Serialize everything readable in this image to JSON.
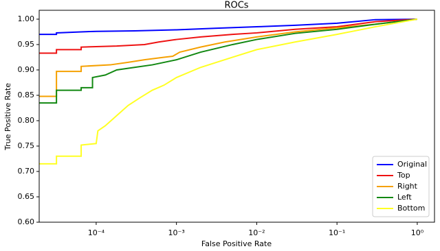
{
  "chart_data": {
    "type": "line",
    "title": "ROCs",
    "x_label": "False Positive Rate",
    "y_label": "True Positive Rate",
    "x_scale": "log",
    "xlim": [
      1.95e-05,
      1.64
    ],
    "ylim": [
      0.6,
      1.0175
    ],
    "xticks": [
      {
        "value": 0.0001,
        "label": "10⁻⁴"
      },
      {
        "value": 0.001,
        "label": "10⁻³"
      },
      {
        "value": 0.01,
        "label": "10⁻²"
      },
      {
        "value": 0.1,
        "label": "10⁻¹"
      },
      {
        "value": 1,
        "label": "10⁰"
      }
    ],
    "yticks": [
      {
        "value": 0.6,
        "label": "0.60"
      },
      {
        "value": 0.65,
        "label": "0.65"
      },
      {
        "value": 0.7,
        "label": "0.70"
      },
      {
        "value": 0.75,
        "label": "0.75"
      },
      {
        "value": 0.8,
        "label": "0.80"
      },
      {
        "value": 0.85,
        "label": "0.85"
      },
      {
        "value": 0.9,
        "label": "0.90"
      },
      {
        "value": 0.95,
        "label": "0.95"
      },
      {
        "value": 1.0,
        "label": "1.00"
      }
    ],
    "legend": "lower right",
    "series": [
      {
        "name": "Original",
        "color": "#0000ff",
        "x": [
          1.95e-05,
          3.2e-05,
          3.2e-05,
          6.5e-05,
          0.0001,
          0.0003,
          0.001,
          0.003,
          0.01,
          0.03,
          0.1,
          0.3,
          1
        ],
        "values": [
          0.97,
          0.97,
          0.973,
          0.975,
          0.976,
          0.977,
          0.979,
          0.982,
          0.985,
          0.988,
          0.992,
          0.999,
          1.0
        ]
      },
      {
        "name": "Top",
        "color": "#ee1111",
        "x": [
          1.95e-05,
          3.2e-05,
          3.2e-05,
          6.5e-05,
          6.5e-05,
          0.00018,
          0.0004,
          0.0006,
          0.001,
          0.002,
          0.005,
          0.01,
          0.03,
          0.1,
          0.3,
          1
        ],
        "values": [
          0.933,
          0.933,
          0.94,
          0.94,
          0.945,
          0.947,
          0.95,
          0.955,
          0.96,
          0.965,
          0.97,
          0.973,
          0.98,
          0.985,
          0.995,
          1.0
        ]
      },
      {
        "name": "Right",
        "color": "#f5a000",
        "x": [
          1.95e-05,
          3.2e-05,
          3.2e-05,
          6.5e-05,
          6.5e-05,
          0.00015,
          0.00025,
          0.0004,
          0.0007,
          0.0009,
          0.0011,
          0.002,
          0.004,
          0.01,
          0.03,
          0.1,
          0.3,
          1
        ],
        "values": [
          0.848,
          0.848,
          0.897,
          0.897,
          0.907,
          0.91,
          0.915,
          0.92,
          0.925,
          0.927,
          0.935,
          0.945,
          0.955,
          0.965,
          0.975,
          0.983,
          0.99,
          1.0
        ]
      },
      {
        "name": "Left",
        "color": "#118811",
        "x": [
          1.95e-05,
          3.2e-05,
          3.2e-05,
          6.5e-05,
          6.5e-05,
          9e-05,
          9e-05,
          0.00013,
          0.00018,
          0.0003,
          0.0005,
          0.001,
          0.002,
          0.005,
          0.01,
          0.03,
          0.1,
          0.3,
          1
        ],
        "values": [
          0.835,
          0.835,
          0.86,
          0.86,
          0.865,
          0.865,
          0.885,
          0.89,
          0.9,
          0.905,
          0.91,
          0.92,
          0.935,
          0.95,
          0.96,
          0.972,
          0.98,
          0.99,
          1.0
        ]
      },
      {
        "name": "Bottom",
        "color": "#ffff22",
        "x": [
          1.95e-05,
          3.2e-05,
          3.2e-05,
          6.5e-05,
          6.5e-05,
          0.0001,
          0.000105,
          0.00013,
          0.00018,
          0.00025,
          0.00035,
          0.0005,
          0.0007,
          0.001,
          0.002,
          0.005,
          0.01,
          0.03,
          0.1,
          0.3,
          1
        ],
        "values": [
          0.715,
          0.715,
          0.73,
          0.73,
          0.752,
          0.755,
          0.78,
          0.79,
          0.81,
          0.83,
          0.845,
          0.86,
          0.87,
          0.885,
          0.905,
          0.925,
          0.94,
          0.955,
          0.97,
          0.985,
          1.0
        ]
      }
    ]
  }
}
